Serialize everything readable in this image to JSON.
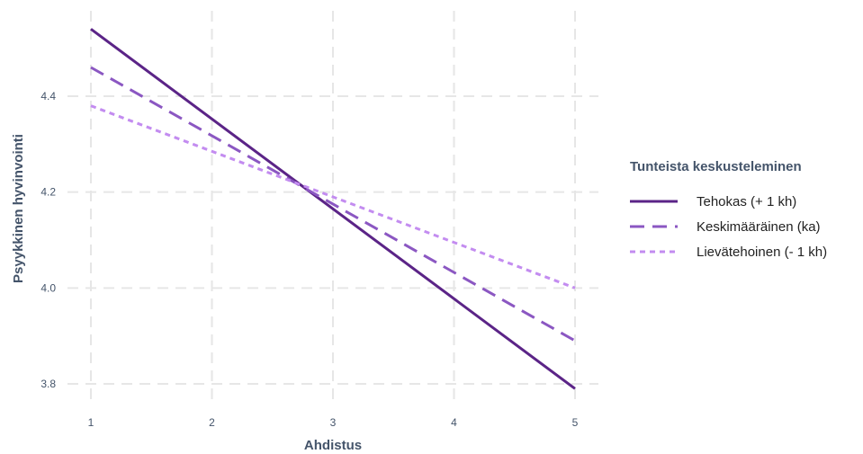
{
  "chart_data": {
    "type": "line",
    "title": "",
    "xlabel": "Ahdistus",
    "ylabel": "Psyykkinen hyvinvointi",
    "xlim": [
      1,
      5
    ],
    "ylim": [
      3.8,
      4.4
    ],
    "x_ticks": [
      "1",
      "2",
      "3",
      "4",
      "5"
    ],
    "y_ticks": [
      "3.8",
      "4.0",
      "4.2",
      "4.4"
    ],
    "grid": true,
    "legend": {
      "title": "Tunteista keskusteleminen",
      "placement": "right"
    },
    "series": [
      {
        "name": "Tehokas (+ 1 kh)",
        "x": [
          1,
          5
        ],
        "values": [
          4.54,
          3.79
        ],
        "color": "#5b2487",
        "line_style": "solid"
      },
      {
        "name": "Keskimääräinen (ka)",
        "x": [
          1,
          5
        ],
        "values": [
          4.46,
          3.89
        ],
        "color": "#8b57c2",
        "line_style": "dashed"
      },
      {
        "name": "Lievätehoinen (- 1 kh)",
        "x": [
          1,
          5
        ],
        "values": [
          4.38,
          4.0
        ],
        "color": "#c38cf0",
        "line_style": "dotted"
      }
    ]
  }
}
